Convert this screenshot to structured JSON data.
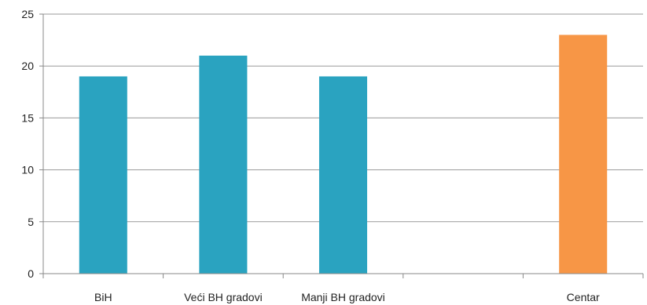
{
  "chart_data": {
    "type": "bar",
    "categories": [
      "BiH",
      "Veći BH gradovi",
      "Manji BH gradovi",
      "",
      "Centar"
    ],
    "values": [
      19,
      21,
      19,
      null,
      23
    ],
    "bar_colors": [
      "#2aa3c0",
      "#2aa3c0",
      "#2aa3c0",
      "#2aa3c0",
      "#f79646"
    ],
    "ylim": [
      0,
      25
    ],
    "yticks": [
      "0",
      "5",
      "10",
      "15",
      "20",
      "25"
    ],
    "ytick_values": [
      0,
      5,
      10,
      15,
      20,
      25
    ],
    "grid": true,
    "legend": "none",
    "gridline_color": "#9a9a9a"
  }
}
